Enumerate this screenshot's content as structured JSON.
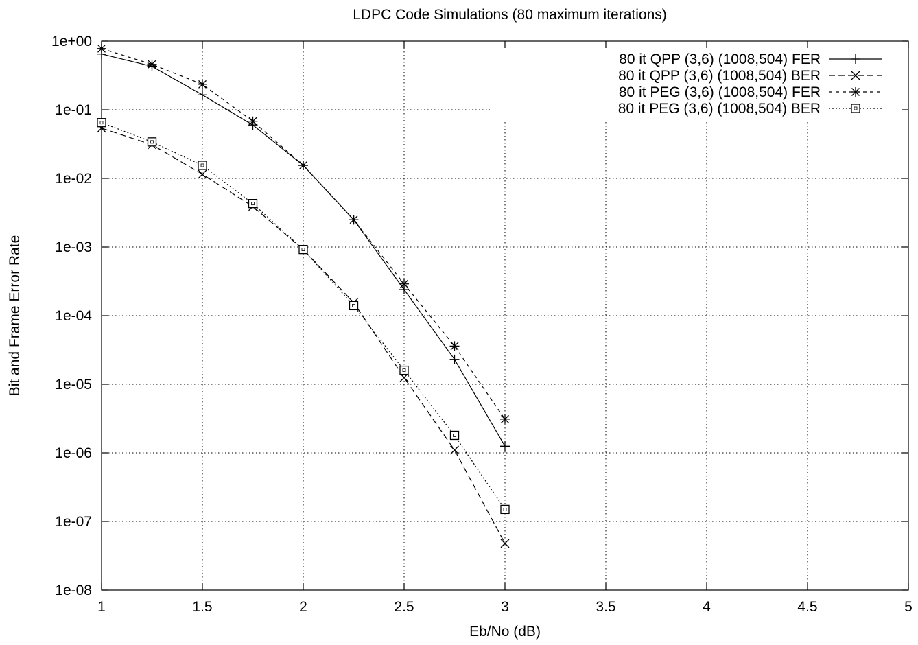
{
  "chart_data": {
    "type": "line",
    "title": "LDPC Code Simulations (80 maximum iterations)",
    "xlabel": "Eb/No (dB)",
    "ylabel": "Bit and Frame Error Rate",
    "xlim": [
      1,
      5
    ],
    "ylim": [
      1e-08,
      1
    ],
    "yscale": "log",
    "grid": true,
    "legend_position": "top-right",
    "x_ticks": [
      "1",
      "1.5",
      "2",
      "2.5",
      "3",
      "3.5",
      "4",
      "4.5",
      "5"
    ],
    "x_tick_values": [
      1,
      1.5,
      2,
      2.5,
      3,
      3.5,
      4,
      4.5,
      5
    ],
    "y_ticks": [
      "1e+00",
      "1e-01",
      "1e-02",
      "1e-03",
      "1e-04",
      "1e-05",
      "1e-06",
      "1e-07",
      "1e-08"
    ],
    "y_tick_values": [
      1,
      0.1,
      0.01,
      0.001,
      0.0001,
      1e-05,
      1e-06,
      1e-07,
      1e-08
    ],
    "x": [
      1,
      1.25,
      1.5,
      1.75,
      2,
      2.25,
      2.5,
      2.75,
      3
    ],
    "series": [
      {
        "name": "80 it QPP (3,6) (1008,504) FER",
        "marker": "plus",
        "dash": "solid",
        "color": "#000000",
        "values": [
          0.65,
          0.43,
          0.165,
          0.06,
          0.0155,
          0.0025,
          0.00024,
          2.3e-05,
          1.25e-06
        ]
      },
      {
        "name": "80 it QPP (3,6) (1008,504) BER",
        "marker": "cross",
        "dash": "dashed",
        "color": "#000000",
        "values": [
          0.054,
          0.031,
          0.0115,
          0.0039,
          0.00092,
          0.000155,
          1.25e-05,
          1.1e-06,
          4.8e-08
        ]
      },
      {
        "name": "80 it PEG (3,6) (1008,504) FER",
        "marker": "star",
        "dash": "short-dashed",
        "color": "#000000",
        "values": [
          0.78,
          0.46,
          0.235,
          0.068,
          0.0155,
          0.0025,
          0.00029,
          3.6e-05,
          3.1e-06
        ]
      },
      {
        "name": "80 it PEG (3,6) (1008,504) BER",
        "marker": "square",
        "dash": "dotted",
        "color": "#000000",
        "values": [
          0.065,
          0.034,
          0.0155,
          0.0043,
          0.00092,
          0.00014,
          1.6e-05,
          1.8e-06,
          1.5e-07
        ]
      }
    ]
  }
}
